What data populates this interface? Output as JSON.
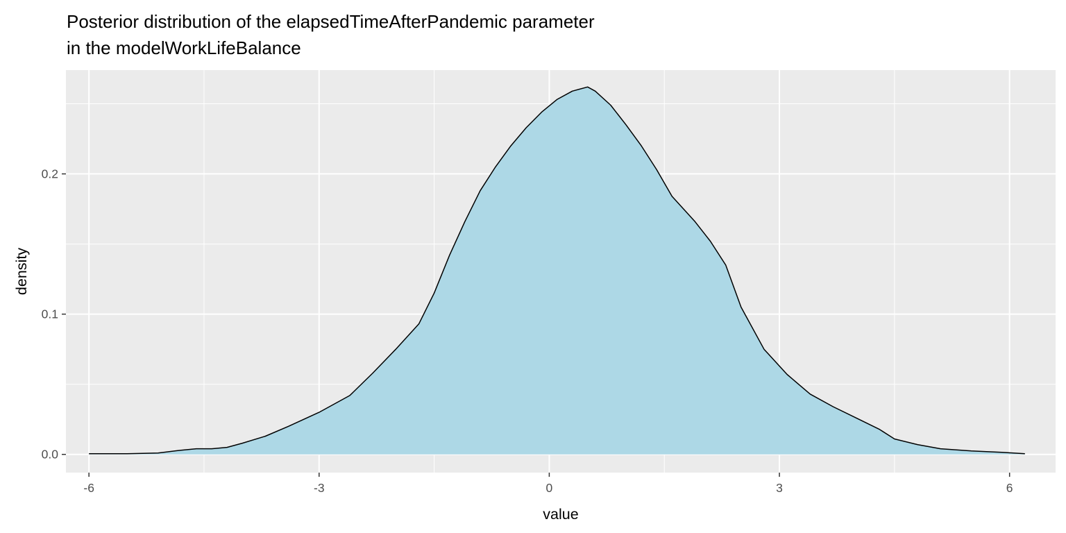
{
  "chart_data": {
    "type": "area",
    "title": [
      "Posterior distribution of the elapsedTimeAfterPandemic parameter",
      "in the modelWorkLifeBalance"
    ],
    "xlabel": "value",
    "ylabel": "density",
    "xlim": [
      -6.3,
      6.6
    ],
    "ylim": [
      -0.013,
      0.274
    ],
    "x_ticks": [
      -6,
      -3,
      0,
      3,
      6
    ],
    "x_tick_labels": [
      "-6",
      "-3",
      "0",
      "3",
      "6"
    ],
    "y_ticks": [
      0.0,
      0.1,
      0.2
    ],
    "y_tick_labels": [
      "0.0",
      "0.1",
      "0.2"
    ],
    "grid": true,
    "fill_color": "#add8e6",
    "line_color": "#000000",
    "panel_background": "#ebebeb",
    "series": [
      {
        "x": [
          -6.0,
          -5.5,
          -5.1,
          -4.8,
          -4.6,
          -4.4,
          -4.2,
          -4.0,
          -3.7,
          -3.4,
          -3.0,
          -2.6,
          -2.3,
          -2.0,
          -1.7,
          -1.5,
          -1.3,
          -1.1,
          -0.9,
          -0.7,
          -0.5,
          -0.3,
          -0.1,
          0.1,
          0.3,
          0.5,
          0.6,
          0.8,
          1.0,
          1.2,
          1.4,
          1.6,
          1.9,
          2.1,
          2.3,
          2.5,
          2.8,
          3.1,
          3.4,
          3.7,
          4.0,
          4.3,
          4.5,
          4.8,
          5.1,
          5.5,
          5.9,
          6.2
        ],
        "y": [
          0.0005,
          0.0005,
          0.001,
          0.003,
          0.004,
          0.004,
          0.005,
          0.008,
          0.013,
          0.02,
          0.03,
          0.042,
          0.058,
          0.075,
          0.093,
          0.115,
          0.142,
          0.166,
          0.188,
          0.205,
          0.22,
          0.233,
          0.244,
          0.253,
          0.259,
          0.262,
          0.259,
          0.249,
          0.235,
          0.22,
          0.203,
          0.184,
          0.166,
          0.152,
          0.135,
          0.105,
          0.075,
          0.057,
          0.043,
          0.034,
          0.026,
          0.018,
          0.011,
          0.007,
          0.004,
          0.0025,
          0.0015,
          0.0005
        ]
      }
    ]
  }
}
